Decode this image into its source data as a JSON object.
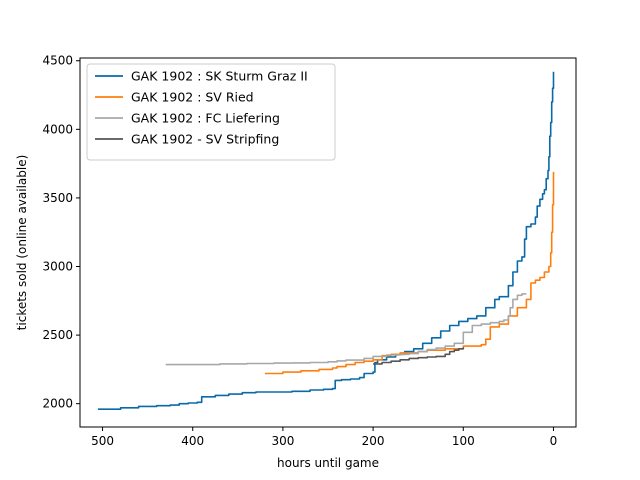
{
  "chart_data": {
    "type": "line",
    "xlabel": "hours until game",
    "ylabel": "tickets sold (online available)",
    "xlim": [
      525,
      -25
    ],
    "ylim": [
      1830,
      4520
    ],
    "x_ticks": [
      500,
      400,
      300,
      200,
      100,
      0
    ],
    "y_ticks": [
      2000,
      2500,
      3000,
      3500,
      4000,
      4500
    ],
    "grid": false,
    "legend_position": "top-left",
    "series": [
      {
        "name": "GAK 1902 : SK Sturm Graz II",
        "color": "#0a6aa8",
        "x": [
          505,
          480,
          460,
          440,
          425,
          415,
          405,
          395,
          390,
          375,
          360,
          345,
          330,
          310,
          290,
          270,
          255,
          245,
          242,
          235,
          225,
          215,
          210,
          200,
          198,
          195,
          185,
          175,
          165,
          155,
          145,
          135,
          125,
          115,
          105,
          95,
          85,
          75,
          65,
          60,
          50,
          45,
          40,
          35,
          32,
          30,
          25,
          20,
          18,
          15,
          12,
          10,
          8,
          6,
          5,
          4,
          3,
          2,
          1,
          0
        ],
        "y": [
          1960,
          1970,
          1980,
          1985,
          1990,
          2000,
          2005,
          2010,
          2050,
          2060,
          2070,
          2080,
          2085,
          2085,
          2090,
          2100,
          2105,
          2110,
          2170,
          2175,
          2180,
          2190,
          2220,
          2230,
          2300,
          2320,
          2340,
          2360,
          2380,
          2400,
          2440,
          2480,
          2530,
          2570,
          2600,
          2620,
          2640,
          2700,
          2760,
          2780,
          2860,
          2960,
          3040,
          3070,
          3200,
          3290,
          3310,
          3360,
          3440,
          3490,
          3530,
          3560,
          3640,
          3700,
          3800,
          3950,
          4050,
          4200,
          4300,
          4420
        ]
      },
      {
        "name": "GAK 1902 : SV Ried",
        "color": "#ff7f0e",
        "x": [
          320,
          300,
          280,
          260,
          245,
          240,
          230,
          220,
          210,
          200,
          190,
          180,
          170,
          160,
          150,
          140,
          120,
          100,
          80,
          75,
          70,
          60,
          50,
          40,
          30,
          25,
          20,
          15,
          10,
          5,
          3,
          2,
          1,
          0
        ],
        "y": [
          2220,
          2230,
          2240,
          2250,
          2260,
          2270,
          2285,
          2300,
          2310,
          2320,
          2350,
          2360,
          2370,
          2370,
          2380,
          2390,
          2400,
          2420,
          2430,
          2470,
          2560,
          2580,
          2640,
          2700,
          2760,
          2880,
          2900,
          2920,
          2960,
          3000,
          3100,
          3250,
          3450,
          3690
        ]
      },
      {
        "name": "GAK 1902 : FC Liefering",
        "color": "#a8a8a8",
        "x": [
          430,
          400,
          370,
          340,
          310,
          290,
          270,
          250,
          240,
          230,
          210,
          200,
          185,
          170,
          160,
          150,
          140,
          130,
          120,
          110,
          100,
          90,
          80,
          70,
          60,
          55,
          50,
          48,
          45,
          40,
          35,
          30
        ],
        "y": [
          2285,
          2285,
          2290,
          2293,
          2296,
          2297,
          2300,
          2305,
          2312,
          2318,
          2330,
          2345,
          2355,
          2360,
          2365,
          2380,
          2395,
          2405,
          2420,
          2440,
          2520,
          2570,
          2580,
          2590,
          2600,
          2610,
          2640,
          2700,
          2760,
          2790,
          2800,
          2800
        ]
      },
      {
        "name": "GAK 1902 - SV Stripfing",
        "color": "#555555",
        "x": [
          200,
          190,
          180,
          170,
          160,
          150,
          140,
          130,
          120,
          115,
          110,
          105,
          100
        ],
        "y": [
          2290,
          2300,
          2310,
          2320,
          2330,
          2335,
          2340,
          2345,
          2360,
          2380,
          2390,
          2400,
          2410
        ]
      }
    ]
  }
}
